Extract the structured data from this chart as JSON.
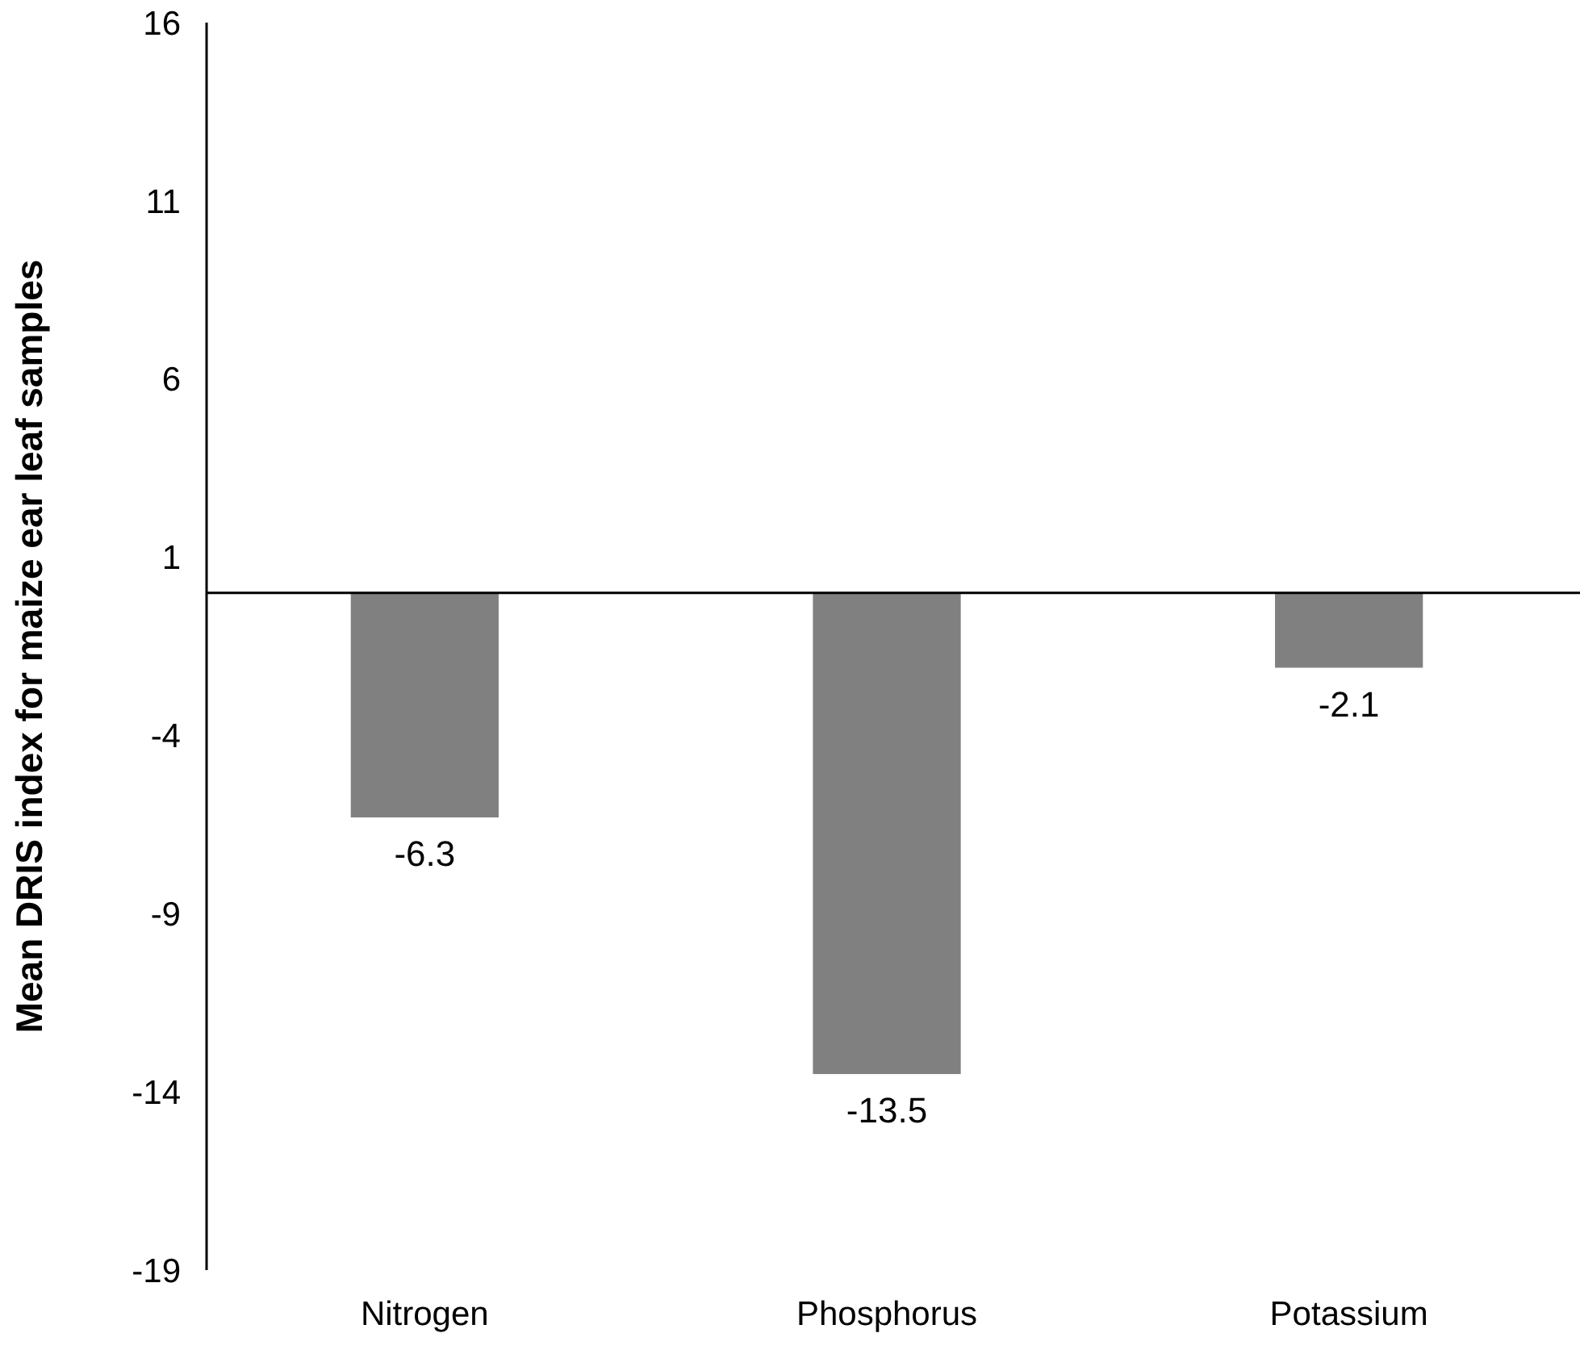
{
  "chart_data": {
    "type": "bar",
    "ylabel": "Mean DRIS index  for maize ear leaf samples",
    "categories": [
      "Nitrogen",
      "Phosphorus",
      "Potassium"
    ],
    "values": [
      -6.3,
      -13.5,
      -2.1
    ],
    "color": "#808080",
    "data_labels": true,
    "ylim": [
      -19,
      16
    ],
    "yticks": [
      16,
      11,
      6,
      1,
      -4,
      -9,
      -14,
      -19
    ],
    "grid": false
  }
}
